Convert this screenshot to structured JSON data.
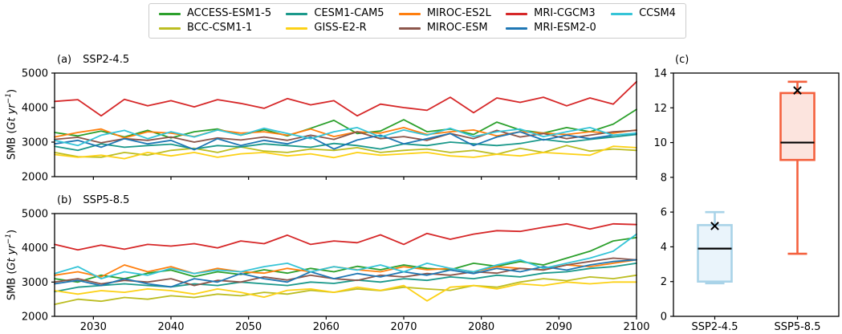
{
  "legend": {
    "items": [
      {
        "label": "ACCESS-ESM1-5",
        "color": "#2ca02c"
      },
      {
        "label": "BCC-CSM1-1",
        "color": "#bcbd22"
      },
      {
        "label": "CESM1-CAM5",
        "color": "#1b998b"
      },
      {
        "label": "GISS-E2-R",
        "color": "#fcd116"
      },
      {
        "label": "MIROC-ES2L",
        "color": "#ff7f0e"
      },
      {
        "label": "MIROC-ESM",
        "color": "#8c564b"
      },
      {
        "label": "MRI-CGCM3",
        "color": "#d62728"
      },
      {
        "label": "MRI-ESM2-0",
        "color": "#1f77b4"
      },
      {
        "label": "CCSM4",
        "color": "#35c4d7"
      }
    ]
  },
  "panels": {
    "a": {
      "tag": "(a)",
      "title": "SSP2-4.5"
    },
    "b": {
      "tag": "(b)",
      "title": "SSP5-8.5"
    },
    "c": {
      "tag": "(c)",
      "title": ""
    }
  },
  "axes": {
    "ylabel": {
      "prefix": "SMB (",
      "italic": "Gt yr",
      "sup": "−1",
      "suffix": ")"
    }
  },
  "chart_data": [
    {
      "type": "line",
      "panel": "a",
      "title": "SSP2-4.5",
      "xlabel": "",
      "ylabel": "SMB (Gt yr^-1)",
      "xlim": [
        2025,
        2100
      ],
      "ylim": [
        2000,
        5000
      ],
      "yticks": [
        2000,
        3000,
        4000,
        5000
      ],
      "xticks": [
        2030,
        2040,
        2050,
        2060,
        2070,
        2080,
        2090,
        2100
      ],
      "show_x_tick_labels": false,
      "grid": false,
      "x": [
        2025,
        2028,
        2031,
        2034,
        2037,
        2040,
        2043,
        2046,
        2049,
        2052,
        2055,
        2058,
        2061,
        2064,
        2067,
        2070,
        2073,
        2076,
        2079,
        2082,
        2085,
        2088,
        2091,
        2094,
        2097,
        2100
      ],
      "series": [
        {
          "name": "ACCESS-ESM1-5",
          "color": "#2ca02c",
          "values": [
            3280,
            3180,
            3320,
            3150,
            3340,
            3120,
            3300,
            3380,
            3200,
            3360,
            3180,
            3400,
            3630,
            3250,
            3320,
            3650,
            3300,
            3380,
            3220,
            3580,
            3350,
            3260,
            3420,
            3300,
            3520,
            3950
          ]
        },
        {
          "name": "BCC-CSM1-1",
          "color": "#bcbd22",
          "values": [
            2700,
            2580,
            2560,
            2700,
            2620,
            2760,
            2820,
            2700,
            2860,
            2740,
            2700,
            2800,
            2760,
            2840,
            2700,
            2760,
            2800,
            2700,
            2760,
            2650,
            2820,
            2700,
            2900,
            2740,
            2800,
            2760
          ]
        },
        {
          "name": "CESM1-CAM5",
          "color": "#1b998b",
          "values": [
            2880,
            2760,
            2950,
            2850,
            2900,
            2940,
            2800,
            2900,
            2860,
            2950,
            2900,
            2850,
            2960,
            2900,
            2800,
            2950,
            2900,
            3000,
            2950,
            2900,
            2960,
            3080,
            3000,
            3080,
            3150,
            3220
          ]
        },
        {
          "name": "GISS-E2-R",
          "color": "#fcd116",
          "values": [
            2640,
            2560,
            2620,
            2520,
            2700,
            2600,
            2700,
            2560,
            2660,
            2700,
            2600,
            2660,
            2550,
            2700,
            2620,
            2660,
            2700,
            2600,
            2560,
            2650,
            2600,
            2700,
            2660,
            2620,
            2880,
            2840
          ]
        },
        {
          "name": "MIROC-ES2L",
          "color": "#ff7f0e",
          "values": [
            3150,
            3280,
            3380,
            3120,
            3300,
            3260,
            3160,
            3350,
            3260,
            3300,
            3200,
            3380,
            3160,
            3300,
            3260,
            3420,
            3220,
            3300,
            3350,
            3180,
            3300,
            3260,
            3220,
            3300,
            3260,
            3350
          ]
        },
        {
          "name": "MIROC-ESM",
          "color": "#8c564b",
          "values": [
            3080,
            3140,
            2980,
            3100,
            3050,
            3150,
            3000,
            3120,
            3060,
            3150,
            3050,
            3200,
            3080,
            3300,
            3100,
            3160,
            3050,
            3250,
            3100,
            3340,
            3150,
            3250,
            3100,
            3200,
            3300,
            3340
          ]
        },
        {
          "name": "MRI-CGCM3",
          "color": "#d62728",
          "values": [
            4180,
            4230,
            3760,
            4240,
            4050,
            4200,
            4020,
            4230,
            4120,
            3980,
            4260,
            4080,
            4200,
            3760,
            4100,
            4000,
            3920,
            4300,
            3850,
            4280,
            4150,
            4300,
            4050,
            4280,
            4100,
            4750
          ]
        },
        {
          "name": "MRI-ESM2-0",
          "color": "#1f77b4",
          "values": [
            2950,
            3050,
            2850,
            3100,
            2950,
            3050,
            2780,
            3100,
            2900,
            3050,
            2950,
            3150,
            2800,
            3060,
            3200,
            2950,
            3100,
            3250,
            2900,
            3150,
            3300,
            3060,
            3200,
            3100,
            3200,
            3250
          ]
        },
        {
          "name": "CCSM4",
          "color": "#35c4d7",
          "values": [
            3050,
            2900,
            3200,
            3340,
            3100,
            3300,
            3150,
            3350,
            3200,
            3400,
            3250,
            3100,
            3300,
            3420,
            3150,
            3350,
            3200,
            3400,
            3160,
            3300,
            3380,
            3160,
            3300,
            3420,
            3200,
            3260
          ]
        }
      ]
    },
    {
      "type": "line",
      "panel": "b",
      "title": "SSP5-8.5",
      "xlabel": "",
      "ylabel": "SMB (Gt yr^-1)",
      "xlim": [
        2025,
        2100
      ],
      "ylim": [
        2000,
        5000
      ],
      "yticks": [
        2000,
        3000,
        4000,
        5000
      ],
      "xticks": [
        2030,
        2040,
        2050,
        2060,
        2070,
        2080,
        2090,
        2100
      ],
      "show_x_tick_labels": true,
      "grid": false,
      "x": [
        2025,
        2028,
        2031,
        2034,
        2037,
        2040,
        2043,
        2046,
        2049,
        2052,
        2055,
        2058,
        2061,
        2064,
        2067,
        2070,
        2073,
        2076,
        2079,
        2082,
        2085,
        2088,
        2091,
        2094,
        2097,
        2100
      ],
      "series": [
        {
          "name": "ACCESS-ESM1-5",
          "color": "#2ca02c",
          "values": [
            3100,
            3000,
            3200,
            3100,
            3260,
            3350,
            3160,
            3300,
            3220,
            3360,
            3260,
            3400,
            3300,
            3460,
            3360,
            3500,
            3400,
            3360,
            3550,
            3460,
            3600,
            3500,
            3700,
            3900,
            4200,
            4300
          ]
        },
        {
          "name": "BCC-CSM1-1",
          "color": "#bcbd22",
          "values": [
            2350,
            2500,
            2440,
            2550,
            2500,
            2600,
            2550,
            2650,
            2600,
            2700,
            2650,
            2760,
            2700,
            2800,
            2750,
            2850,
            2800,
            2760,
            2900,
            2850,
            3000,
            3100,
            3040,
            3150,
            3100,
            3200
          ]
        },
        {
          "name": "CESM1-CAM5",
          "color": "#1b998b",
          "values": [
            2720,
            2850,
            2900,
            2950,
            2900,
            2860,
            2950,
            2900,
            3000,
            2950,
            2900,
            3000,
            2960,
            3060,
            3000,
            3100,
            3050,
            3150,
            3100,
            3200,
            3150,
            3260,
            3300,
            3400,
            3450,
            3550
          ]
        },
        {
          "name": "GISS-E2-R",
          "color": "#fcd116",
          "values": [
            2750,
            2650,
            2750,
            2700,
            2800,
            2750,
            2650,
            2800,
            2700,
            2560,
            2760,
            2800,
            2700,
            2850,
            2760,
            2900,
            2450,
            2850,
            2900,
            2800,
            2950,
            2900,
            3000,
            2950,
            3000,
            3000
          ]
        },
        {
          "name": "MIROC-ES2L",
          "color": "#ff7f0e",
          "values": [
            3200,
            3300,
            3150,
            3500,
            3300,
            3450,
            3250,
            3400,
            3300,
            3260,
            3400,
            3300,
            3450,
            3360,
            3300,
            3450,
            3360,
            3400,
            3300,
            3450,
            3400,
            3360,
            3500,
            3450,
            3550,
            3650
          ]
        },
        {
          "name": "MIROC-ESM",
          "color": "#8c564b",
          "values": [
            3000,
            3100,
            2950,
            3050,
            3000,
            3100,
            2900,
            3050,
            3000,
            3150,
            3060,
            3200,
            3100,
            3050,
            3200,
            3150,
            3250,
            3200,
            3300,
            3260,
            3400,
            3350,
            3500,
            3600,
            3700,
            3650
          ]
        },
        {
          "name": "MRI-CGCM3",
          "color": "#d62728",
          "values": [
            4100,
            3940,
            4080,
            3960,
            4100,
            4050,
            4120,
            4000,
            4200,
            4120,
            4370,
            4100,
            4200,
            4150,
            4380,
            4100,
            4420,
            4250,
            4400,
            4500,
            4480,
            4600,
            4700,
            4550,
            4700,
            4680
          ]
        },
        {
          "name": "MRI-ESM2-0",
          "color": "#1f77b4",
          "values": [
            2950,
            3050,
            2900,
            3100,
            2950,
            2860,
            3100,
            3000,
            3250,
            3100,
            3000,
            3300,
            3100,
            3250,
            3150,
            3300,
            3200,
            3350,
            3250,
            3400,
            3300,
            3450,
            3350,
            3500,
            3600,
            3650
          ]
        },
        {
          "name": "CCSM4",
          "color": "#35c4d7",
          "values": [
            3250,
            3450,
            3100,
            3300,
            3200,
            3400,
            3250,
            3350,
            3300,
            3450,
            3550,
            3300,
            3450,
            3350,
            3500,
            3300,
            3550,
            3400,
            3300,
            3500,
            3650,
            3400,
            3550,
            3700,
            3900,
            4400
          ]
        }
      ]
    },
    {
      "type": "box",
      "panel": "c",
      "title": "",
      "ylim": [
        0,
        14
      ],
      "yticks": [
        0,
        2,
        4,
        6,
        8,
        10,
        12,
        14
      ],
      "categories": [
        "SSP2-4.5",
        "SSP5-8.5"
      ],
      "mean_marker": "x",
      "boxes": [
        {
          "label": "SSP2-4.5",
          "whisker_low": 1.9,
          "q1": 2.0,
          "median": 3.9,
          "q3": 5.25,
          "whisker_high": 6.0,
          "mean": 5.2,
          "fill": "#eaf4fb",
          "edge": "#a9d3e8"
        },
        {
          "label": "SSP5-8.5",
          "whisker_low": 3.6,
          "q1": 9.0,
          "median": 10.0,
          "q3": 12.85,
          "whisker_high": 13.5,
          "mean": 13.0,
          "fill": "#fce4de",
          "edge": "#f4613e"
        }
      ]
    }
  ]
}
